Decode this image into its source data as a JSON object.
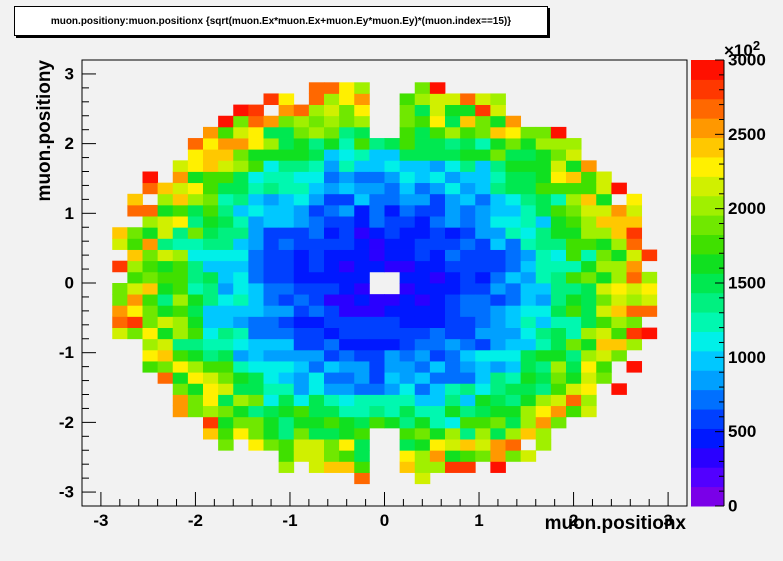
{
  "title": "muon.positiony:muon.positionx {sqrt(muon.Ex*muon.Ex+muon.Ey*muon.Ey)*(muon.index==15)}",
  "xlabel": "muon.positionx",
  "ylabel": "muon.positiony",
  "palette_exponent": "×10",
  "palette_exponent_sup": "2",
  "chart_data": {
    "type": "heatmap",
    "title": "muon.positiony:muon.positionx {sqrt(muon.Ex*muon.Ex+muon.Ey*muon.Ey)*(muon.index==15)}",
    "xlabel": "muon.positionx",
    "ylabel": "muon.positiony",
    "xlim": [
      -3.2,
      3.2
    ],
    "ylim": [
      -3.2,
      3.2
    ],
    "x_ticks": [
      "-3",
      "-2",
      "-1",
      "0",
      "1",
      "2",
      "3"
    ],
    "y_ticks": [
      "-3",
      "-2",
      "-1",
      "0",
      "1",
      "2",
      "3"
    ],
    "z_range": [
      0,
      300000
    ],
    "z_ticks": [
      "0",
      "500",
      "1000",
      "1500",
      "2000",
      "2500",
      "3000"
    ],
    "z_multiplier": "×10^2",
    "bins": 40,
    "bin_width": 0.16,
    "distribution": "disk of radius ~2.9; value rises from ~0 at center to ~3000 (x10^2) at rim; empty center bin and empty gap at x≈0 for |y|>2",
    "palette": [
      "#7a00e8",
      "#5200ff",
      "#2a00ff",
      "#0018ff",
      "#0040ff",
      "#0070ff",
      "#00a0ff",
      "#00c8ff",
      "#00f0e8",
      "#00f8b0",
      "#00f080",
      "#00e850",
      "#10e020",
      "#40e000",
      "#70e800",
      "#a0f000",
      "#d0f000",
      "#fff000",
      "#ffc800",
      "#ff9800",
      "#ff6800",
      "#ff3800",
      "#ff1000"
    ],
    "grid": false,
    "legend": "colorbar-right"
  }
}
